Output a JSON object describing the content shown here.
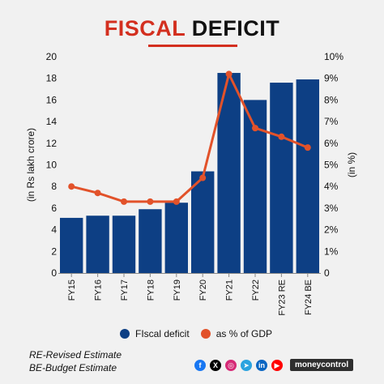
{
  "title": {
    "part1": "FISCAL",
    "part2": "DEFICIT"
  },
  "chart_data": {
    "type": "bar",
    "categories": [
      "FY15",
      "FY16",
      "FY17",
      "FY18",
      "FY19",
      "FY20",
      "FY21",
      "FY22",
      "FY23 RE",
      "FY24 BE"
    ],
    "series": [
      {
        "name": "FIscal deficit",
        "type": "bar",
        "axis": "left",
        "values": [
          5.1,
          5.3,
          5.3,
          5.9,
          6.5,
          9.4,
          18.5,
          16.0,
          17.6,
          17.9
        ]
      },
      {
        "name": "as % of GDP",
        "type": "line",
        "axis": "right",
        "values": [
          4.0,
          3.7,
          3.3,
          3.3,
          3.3,
          4.4,
          9.2,
          6.7,
          6.3,
          5.8
        ]
      }
    ],
    "ylabel_left": "(in Rs lakh crore)",
    "ylabel_right": "(in %)",
    "ylim_left": [
      0,
      20
    ],
    "ylim_right": [
      0,
      10
    ],
    "left_ticks": [
      "0",
      "2",
      "4",
      "6",
      "8",
      "10",
      "12",
      "14",
      "16",
      "18",
      "20"
    ],
    "right_ticks": [
      "0",
      "1%",
      "2%",
      "3%",
      "4%",
      "5%",
      "6%",
      "7%",
      "8%",
      "9%",
      "10%"
    ],
    "grid": false,
    "legend_position": "bottom",
    "bar_color": "#0d3f84",
    "line_color": "#e2522a"
  },
  "notes": [
    "RE-Revised Estimate",
    "BE-Budget Estimate"
  ],
  "social": {
    "icons": [
      {
        "name": "facebook-icon",
        "glyph": "f",
        "color": "#1877f2"
      },
      {
        "name": "x-icon",
        "glyph": "X",
        "color": "#000000"
      },
      {
        "name": "instagram-icon",
        "glyph": "◎",
        "color": "#d62976"
      },
      {
        "name": "telegram-icon",
        "glyph": "➤",
        "color": "#2aa3df"
      },
      {
        "name": "linkedin-icon",
        "glyph": "in",
        "color": "#0a66c2"
      },
      {
        "name": "youtube-icon",
        "glyph": "▶",
        "color": "#ff0000"
      }
    ],
    "brand": "moneycontrol"
  }
}
